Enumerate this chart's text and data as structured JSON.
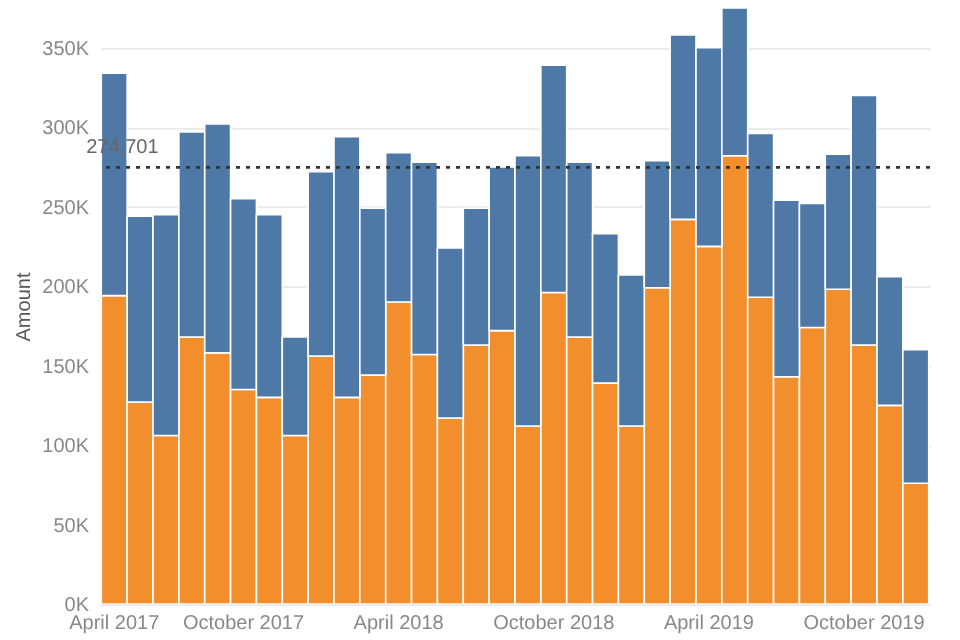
{
  "chart_data": {
    "type": "bar",
    "stacked": true,
    "ylabel": "Amount",
    "categories": [
      "April 2017",
      null,
      null,
      null,
      null,
      "October 2017",
      null,
      null,
      null,
      null,
      null,
      "April 2018",
      null,
      null,
      null,
      null,
      null,
      "October 2018",
      null,
      null,
      null,
      null,
      null,
      "April 2019",
      null,
      null,
      null,
      null,
      null,
      "October 2019",
      null,
      null
    ],
    "series": [
      {
        "color": "#f28e2b",
        "values": [
          194000,
          127000,
          106000,
          168000,
          158000,
          135000,
          130000,
          106000,
          156000,
          130000,
          144000,
          190000,
          157000,
          117000,
          163000,
          172000,
          112000,
          196000,
          168000,
          139000,
          112000,
          199000,
          242000,
          225000,
          282000,
          193000,
          143000,
          174000,
          198000,
          163000,
          125000,
          76000
        ]
      },
      {
        "color": "#4e79a7",
        "values": [
          140000,
          117000,
          139000,
          129000,
          144000,
          120000,
          115000,
          62000,
          116000,
          164000,
          105000,
          94000,
          121000,
          107000,
          86000,
          103000,
          170000,
          143000,
          110000,
          94000,
          95000,
          80000,
          116000,
          125000,
          93000,
          103000,
          111000,
          78000,
          85000,
          157000,
          81000,
          84000
        ]
      }
    ],
    "ylim": [
      0,
      375000
    ],
    "yticks": [
      {
        "value": 0,
        "label": "0K"
      },
      {
        "value": 50000,
        "label": "50K"
      },
      {
        "value": 100000,
        "label": "100K"
      },
      {
        "value": 150000,
        "label": "150K"
      },
      {
        "value": 200000,
        "label": "200K"
      },
      {
        "value": 250000,
        "label": "250K"
      },
      {
        "value": 300000,
        "label": "300K"
      },
      {
        "value": 350000,
        "label": "350K"
      }
    ],
    "grid": "y",
    "ref_lines": [
      {
        "axis": "y",
        "value": 274701,
        "label": "274,701",
        "line_style": "dotted",
        "color": "#333333"
      }
    ]
  }
}
